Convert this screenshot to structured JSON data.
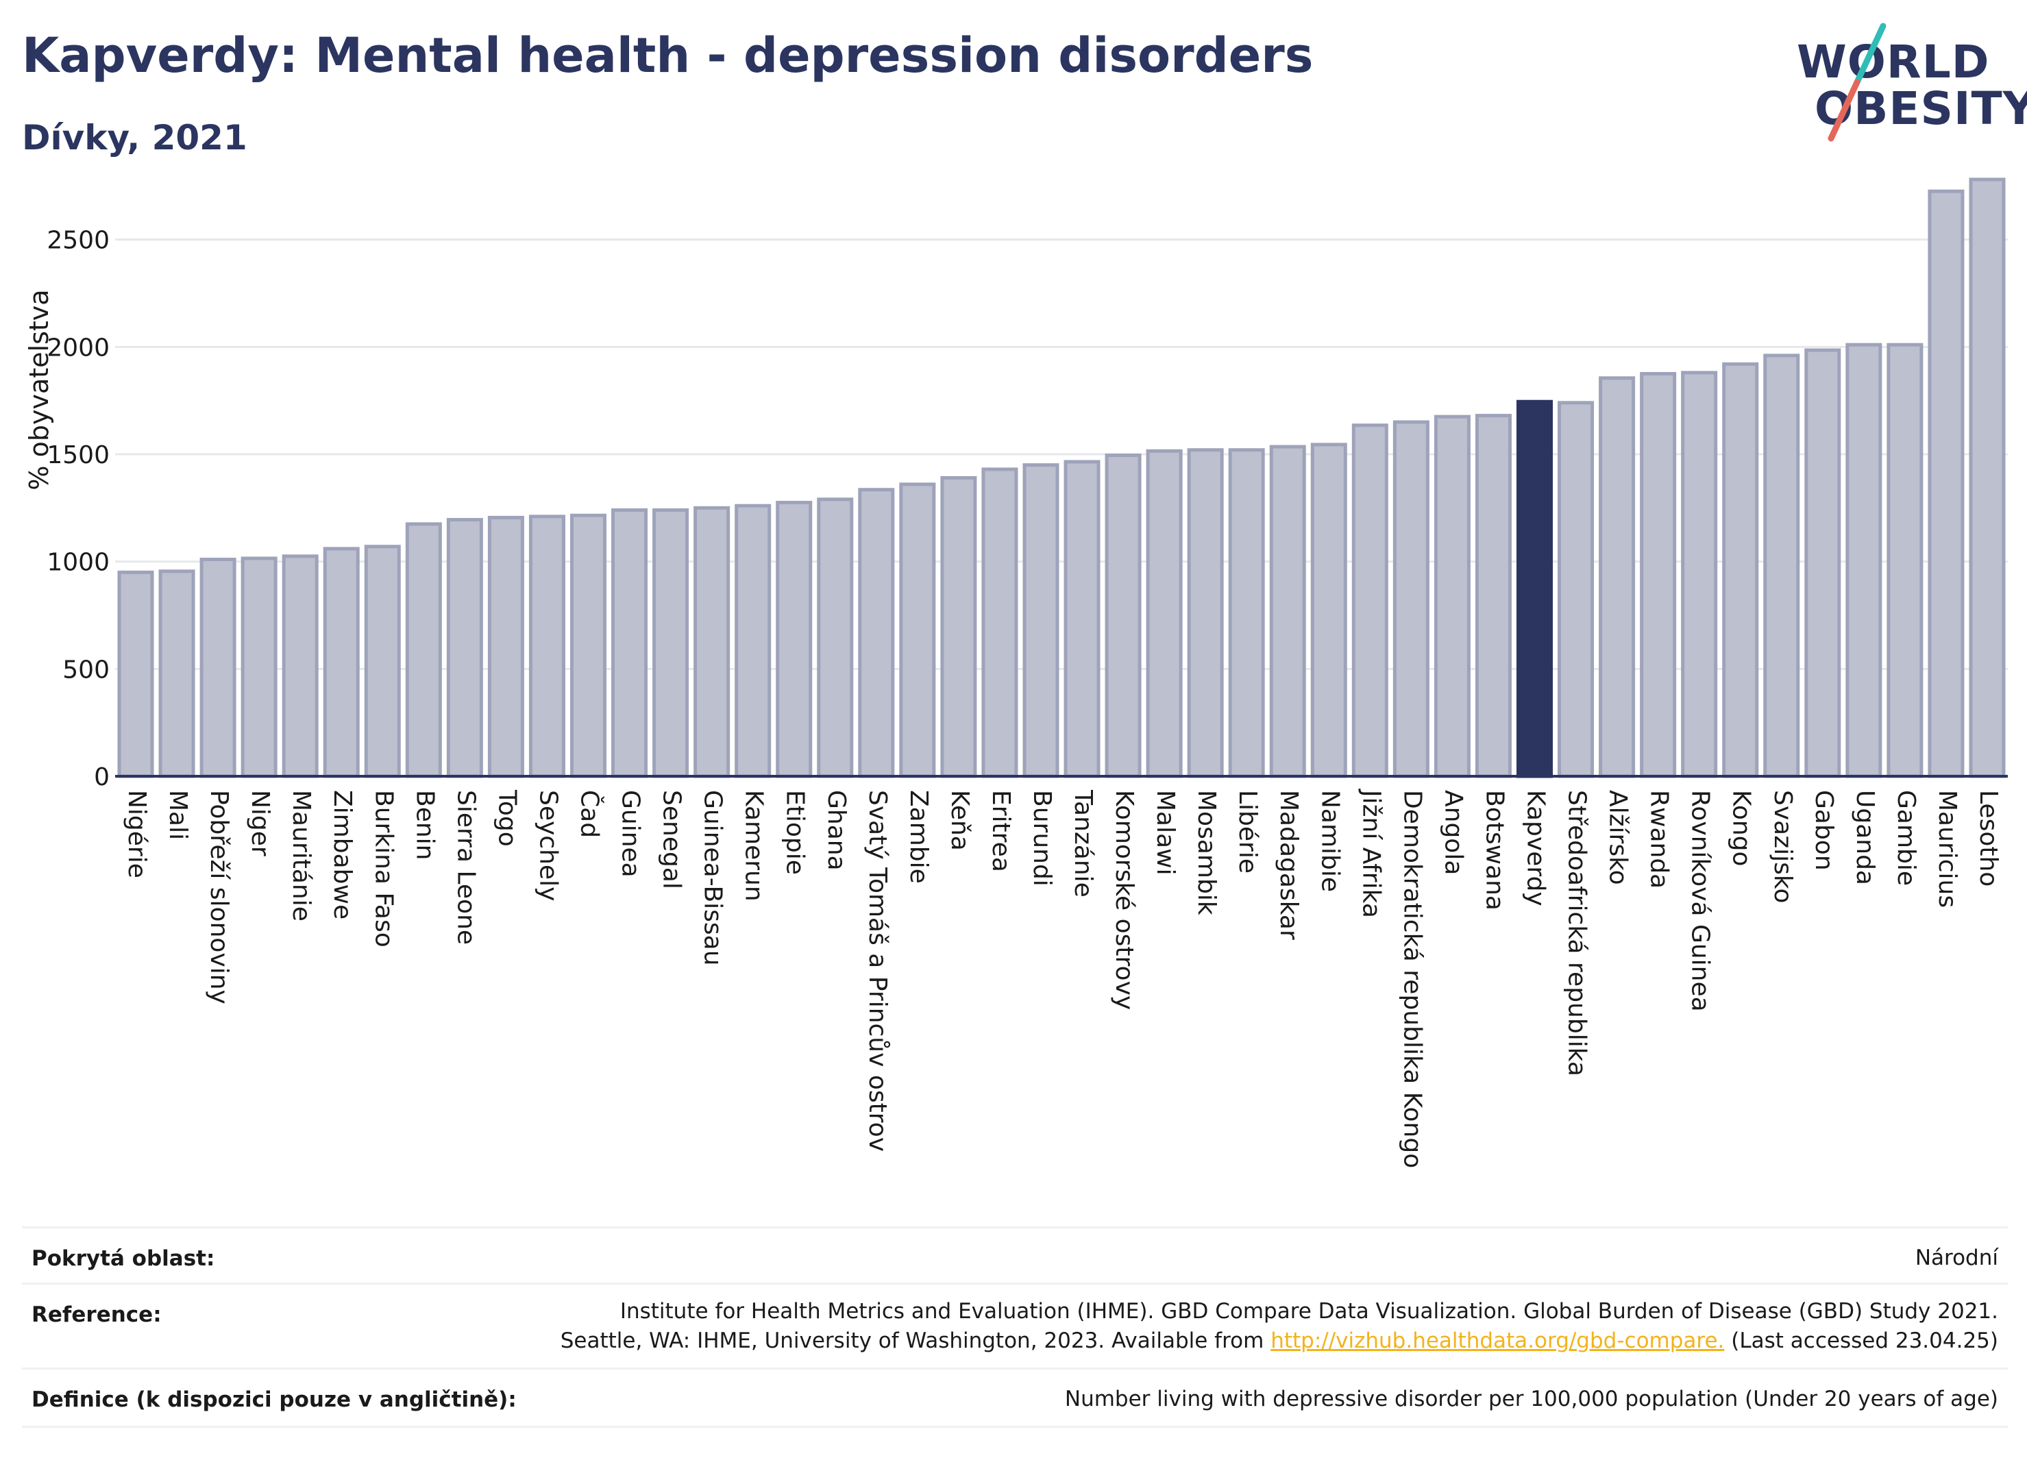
{
  "header": {
    "title": "Kapverdy: Mental health - depression disorders",
    "subtitle": "Dívky, 2021"
  },
  "logo": {
    "line1": "WORLD",
    "line2": "OBESITY",
    "accent_teal": "#2fbdb6",
    "accent_red": "#e4685a"
  },
  "colors": {
    "bar": "#bcc0cf",
    "bar_border": "#9ea3ba",
    "highlight": "#2b3560",
    "axis": "#2b3560",
    "grid": "#e6e8ec"
  },
  "chart_data": {
    "type": "bar",
    "title": "Kapverdy: Mental health - depression disorders",
    "subtitle": "Dívky, 2021",
    "ylabel": "% obyvatelstva",
    "xlabel": "",
    "ylim": [
      0,
      2850
    ],
    "yticks": [
      0,
      500,
      1000,
      1500,
      2000,
      2500
    ],
    "grid": true,
    "highlight": "Kapverdy",
    "categories": [
      "Nigérie",
      "Mali",
      "Pobřeží slonoviny",
      "Niger",
      "Mauritánie",
      "Zimbabwe",
      "Burkina Faso",
      "Benin",
      "Sierra Leone",
      "Togo",
      "Seychely",
      "Čad",
      "Guinea",
      "Senegal",
      "Guinea-Bissau",
      "Kamerun",
      "Etiopie",
      "Ghana",
      "Svatý Tomáš a Princův ostrov",
      "Zambie",
      "Keňa",
      "Eritrea",
      "Burundi",
      "Tanzánie",
      "Komorské ostrovy",
      "Malawi",
      "Mosambik",
      "Libérie",
      "Madagaskar",
      "Namibie",
      "Jižní Afrika",
      "Demokratická republika Kongo",
      "Angola",
      "Botswana",
      "Kapverdy",
      "Středoafrická republika",
      "Alžírsko",
      "Rwanda",
      "Rovníková Guinea",
      "Kongo",
      "Svazijsko",
      "Gabon",
      "Uganda",
      "Gambie",
      "Mauricius",
      "Lesotho"
    ],
    "values": [
      950,
      955,
      1010,
      1015,
      1025,
      1060,
      1070,
      1175,
      1195,
      1205,
      1210,
      1215,
      1240,
      1240,
      1250,
      1260,
      1275,
      1290,
      1335,
      1360,
      1390,
      1430,
      1450,
      1465,
      1495,
      1515,
      1520,
      1520,
      1535,
      1545,
      1635,
      1650,
      1675,
      1680,
      1745,
      1740,
      1855,
      1875,
      1880,
      1920,
      1960,
      1985,
      2010,
      2010,
      2725,
      2780
    ]
  },
  "footer": {
    "coverage_label": "Pokrytá oblast:",
    "coverage_value": "Národní",
    "reference_label": "Reference:",
    "reference_line1": "Institute for Health Metrics and Evaluation (IHME). GBD Compare Data Visualization. Global Burden of Disease (GBD) Study 2021.",
    "reference_line2_pre": "Seattle, WA: IHME, University of Washington, 2023. Available from ",
    "reference_link": "http://vizhub.healthdata.org/gbd-compare.",
    "reference_line2_post": " (Last accessed 23.04.25)",
    "definition_label": "Definice (k dispozici pouze v angličtině):",
    "definition_value": "Number living with depressive disorder per 100,000 population (Under 20 years of age)"
  }
}
